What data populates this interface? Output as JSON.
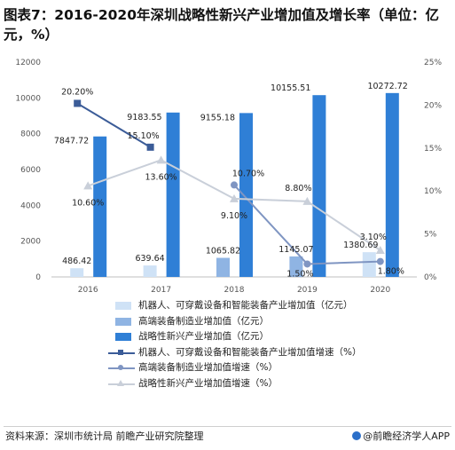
{
  "title": "图表7：2016-2020年深圳战略性新兴产业增加值及增长率（单位：亿元，%）",
  "source": "资料来源：深圳市统计局  前瞻产业研究院整理",
  "brand": "@前瞻经济学人APP",
  "colors": {
    "robot_bar": "#cfe2f6",
    "highend_bar": "#8fb4e3",
    "strategic_bar": "#2f7fd6",
    "robot_line": "#3b5c98",
    "highend_line": "#7f95c2",
    "strategic_line": "#c9cfd9"
  },
  "chart_data": {
    "type": "bar",
    "categories": [
      "2016",
      "2017",
      "2018",
      "2019",
      "2020"
    ],
    "y_left_ticks": [
      "0",
      "2000",
      "4000",
      "6000",
      "8000",
      "10000",
      "12000"
    ],
    "y_right_ticks": [
      "0%",
      "5%",
      "10%",
      "15%",
      "20%",
      "25%"
    ],
    "ylim_left": [
      0,
      12000
    ],
    "ylim_right": [
      0,
      25
    ],
    "bars": [
      {
        "name": "机器人、可穿戴设备和智能装备产业增加值（亿元）",
        "values": [
          486.42,
          639.64,
          null,
          null,
          1380.69
        ],
        "labels": [
          "486.42",
          "639.64",
          "",
          "",
          "1380.69"
        ]
      },
      {
        "name": "高端装备制造业增加值（亿元）",
        "values": [
          null,
          null,
          1065.82,
          1145.07,
          null
        ],
        "labels": [
          "",
          "",
          "1065.82",
          "1145.07",
          ""
        ]
      },
      {
        "name": "战略性新兴产业增加值（亿元）",
        "values": [
          7847.72,
          9183.55,
          9155.18,
          10155.51,
          10272.72
        ],
        "labels": [
          "7847.72",
          "9183.55",
          "9155.18",
          "10155.51",
          "10272.72"
        ]
      }
    ],
    "lines": [
      {
        "name": "机器人、可穿戴设备和智能装备产业增加值增速（%）",
        "values": [
          20.2,
          15.1,
          null,
          null,
          null
        ],
        "labels": [
          "20.20%",
          "15.10%",
          "",
          "",
          ""
        ]
      },
      {
        "name": "高端装备制造业增加值增速（%）",
        "values": [
          null,
          null,
          10.7,
          1.5,
          1.8
        ],
        "labels": [
          "",
          "",
          "10.70%",
          "1.50%",
          "1.80%"
        ]
      },
      {
        "name": "战略性新兴产业增加值增速（%）",
        "values": [
          10.6,
          13.6,
          9.1,
          8.8,
          3.1
        ],
        "labels": [
          "10.60%",
          "13.60%",
          "9.10%",
          "8.80%",
          "3.10%"
        ]
      }
    ],
    "legend_position": "bottom",
    "grid": false
  }
}
